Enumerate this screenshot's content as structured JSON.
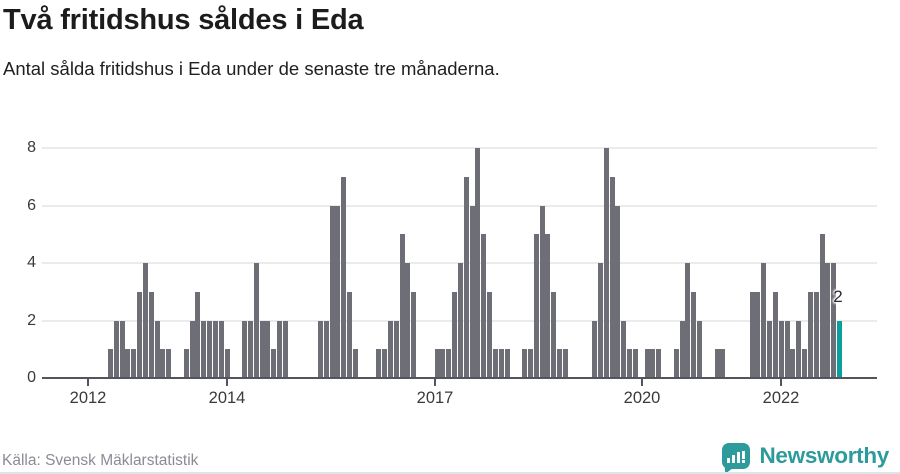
{
  "header": {
    "title": "Två fritidshus såldes i Eda",
    "subtitle": "Antal sålda fritidshus i Eda under de senaste tre månaderna."
  },
  "chart_data": {
    "type": "bar",
    "title": "Två fritidshus såldes i Eda",
    "xlabel": "",
    "ylabel": "",
    "ylim": [
      0,
      8
    ],
    "y_ticks": [
      0,
      2,
      4,
      6,
      8
    ],
    "x_tick_labels": [
      "2012",
      "2014",
      "2017",
      "2020",
      "2022"
    ],
    "grid": "horizontal",
    "legend": "none",
    "bar_color": "#6e6e76",
    "highlight_color": "#0a9f9e",
    "highlight_last_bar": true,
    "last_value_label": "2",
    "values": [
      1,
      2,
      2,
      1,
      1,
      3,
      4,
      3,
      2,
      1,
      1,
      0,
      0,
      1,
      2,
      3,
      2,
      2,
      2,
      2,
      1,
      0,
      0,
      2,
      2,
      4,
      2,
      2,
      1,
      2,
      2,
      0,
      0,
      0,
      0,
      0,
      2,
      2,
      6,
      6,
      7,
      3,
      1,
      0,
      0,
      0,
      1,
      1,
      2,
      2,
      5,
      4,
      3,
      0,
      0,
      0,
      1,
      1,
      1,
      3,
      4,
      7,
      6,
      8,
      5,
      3,
      1,
      1,
      1,
      0,
      0,
      1,
      1,
      5,
      6,
      5,
      3,
      1,
      1,
      0,
      0,
      0,
      0,
      2,
      4,
      8,
      7,
      6,
      2,
      1,
      1,
      0,
      1,
      1,
      1,
      0,
      0,
      1,
      2,
      4,
      3,
      2,
      0,
      0,
      1,
      1,
      0,
      0,
      0,
      0,
      3,
      3,
      4,
      2,
      3,
      2,
      2,
      1,
      2,
      1,
      3,
      3,
      5,
      4,
      4,
      2
    ]
  },
  "footer": {
    "source": "Källa: Svensk Mäklarstatistik",
    "brand": "Newsworthy"
  },
  "colors": {
    "bar": "#6e6e76",
    "highlight": "#0a9f9e",
    "brand_teal": "#2d9b9b",
    "axis": "#54545c",
    "gridline": "#ebebeb",
    "text": "#1c1c1c",
    "muted_text": "#8b8b94"
  }
}
